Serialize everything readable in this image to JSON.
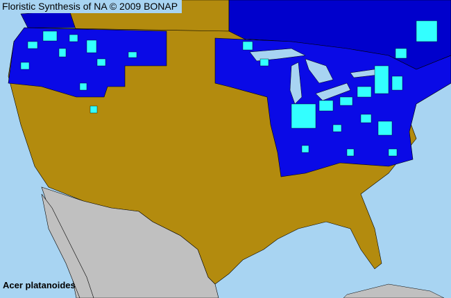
{
  "header": {
    "title": "Floristic Synthesis of NA © 2009 BONAP"
  },
  "species": {
    "name": "Acer platanoides"
  },
  "colors": {
    "ocean_lakes": "#a8d4f2",
    "absent": "#b38b0e",
    "present_in_state": "#0a0ae6",
    "present_in_county": "#33ffff",
    "canada_present": "#0000cc",
    "mexico_no_data": "#c0c0c0",
    "borders": "#000000"
  }
}
